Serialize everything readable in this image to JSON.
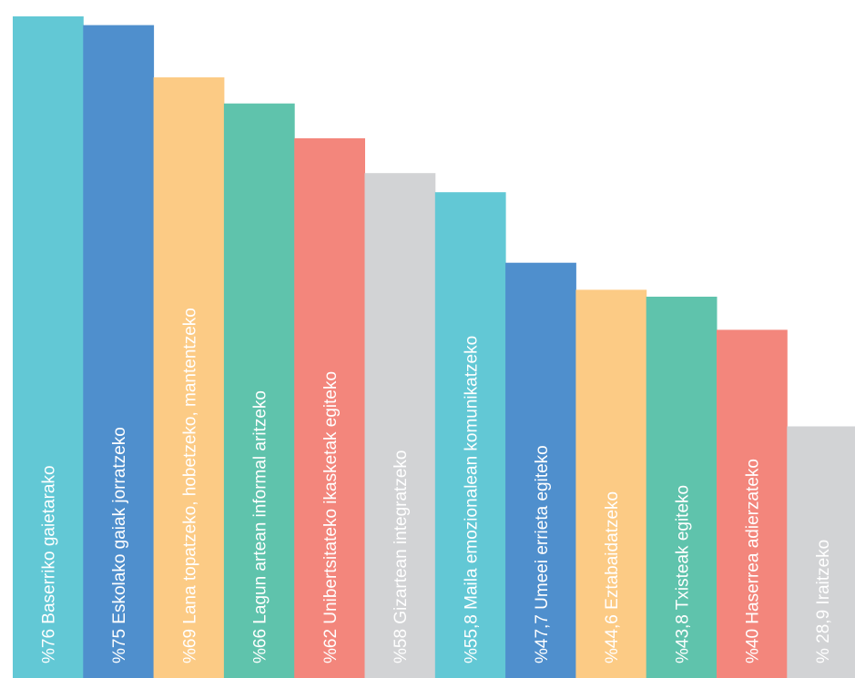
{
  "chart_data": {
    "type": "bar",
    "orientation": "vertical",
    "title": "",
    "xlabel": "",
    "ylabel": "",
    "ylim": [
      0,
      76
    ],
    "grid": false,
    "legend": "none",
    "categories": [
      "Baserriko gaietarako",
      "Eskolako gaiak jorratzeko",
      "Lana topatzeko, hobetzeko, mantentzeko",
      "Lagun artean informal aritzeko",
      "Unibertsitateko ikasketak egiteko",
      "Gizartean integratzeko",
      "Maila emozionalean komunikatzeko",
      "Umeei errieta egiteko",
      "Eztabaidatzeko",
      "Txisteak egiteko",
      "Haserrea adierzateko",
      "Iraitzeko"
    ],
    "values": [
      76,
      75,
      69,
      66,
      62,
      58,
      55.8,
      47.7,
      44.6,
      43.8,
      40,
      28.9
    ],
    "labels": [
      "%76 Baserriko gaietarako",
      "%75 Eskolako gaiak jorratzeko",
      "%69 Lana topatzeko, hobetzeko, mantentzeko",
      "%66 Lagun artean informal aritzeko",
      "%62 Unibertsitateko ikasketak egiteko",
      "%58 Gizartean integratzeko",
      "%55,8 Maila emozionalean komunikatzeko",
      "%47,7 Umeei errieta egiteko",
      "%44,6 Eztabaidatzeko",
      "%43,8 Txisteak egiteko",
      "%40 Haserrea adierzateko",
      "% 28,9 Iraitzeko"
    ],
    "colors": [
      "#62C8D5",
      "#4F8FCD",
      "#FCCB85",
      "#5FC3AC",
      "#F3867C",
      "#D2D3D5",
      "#62C8D5",
      "#4F8FCD",
      "#FCCB85",
      "#5FC3AC",
      "#F3867C",
      "#D2D3D5"
    ]
  }
}
